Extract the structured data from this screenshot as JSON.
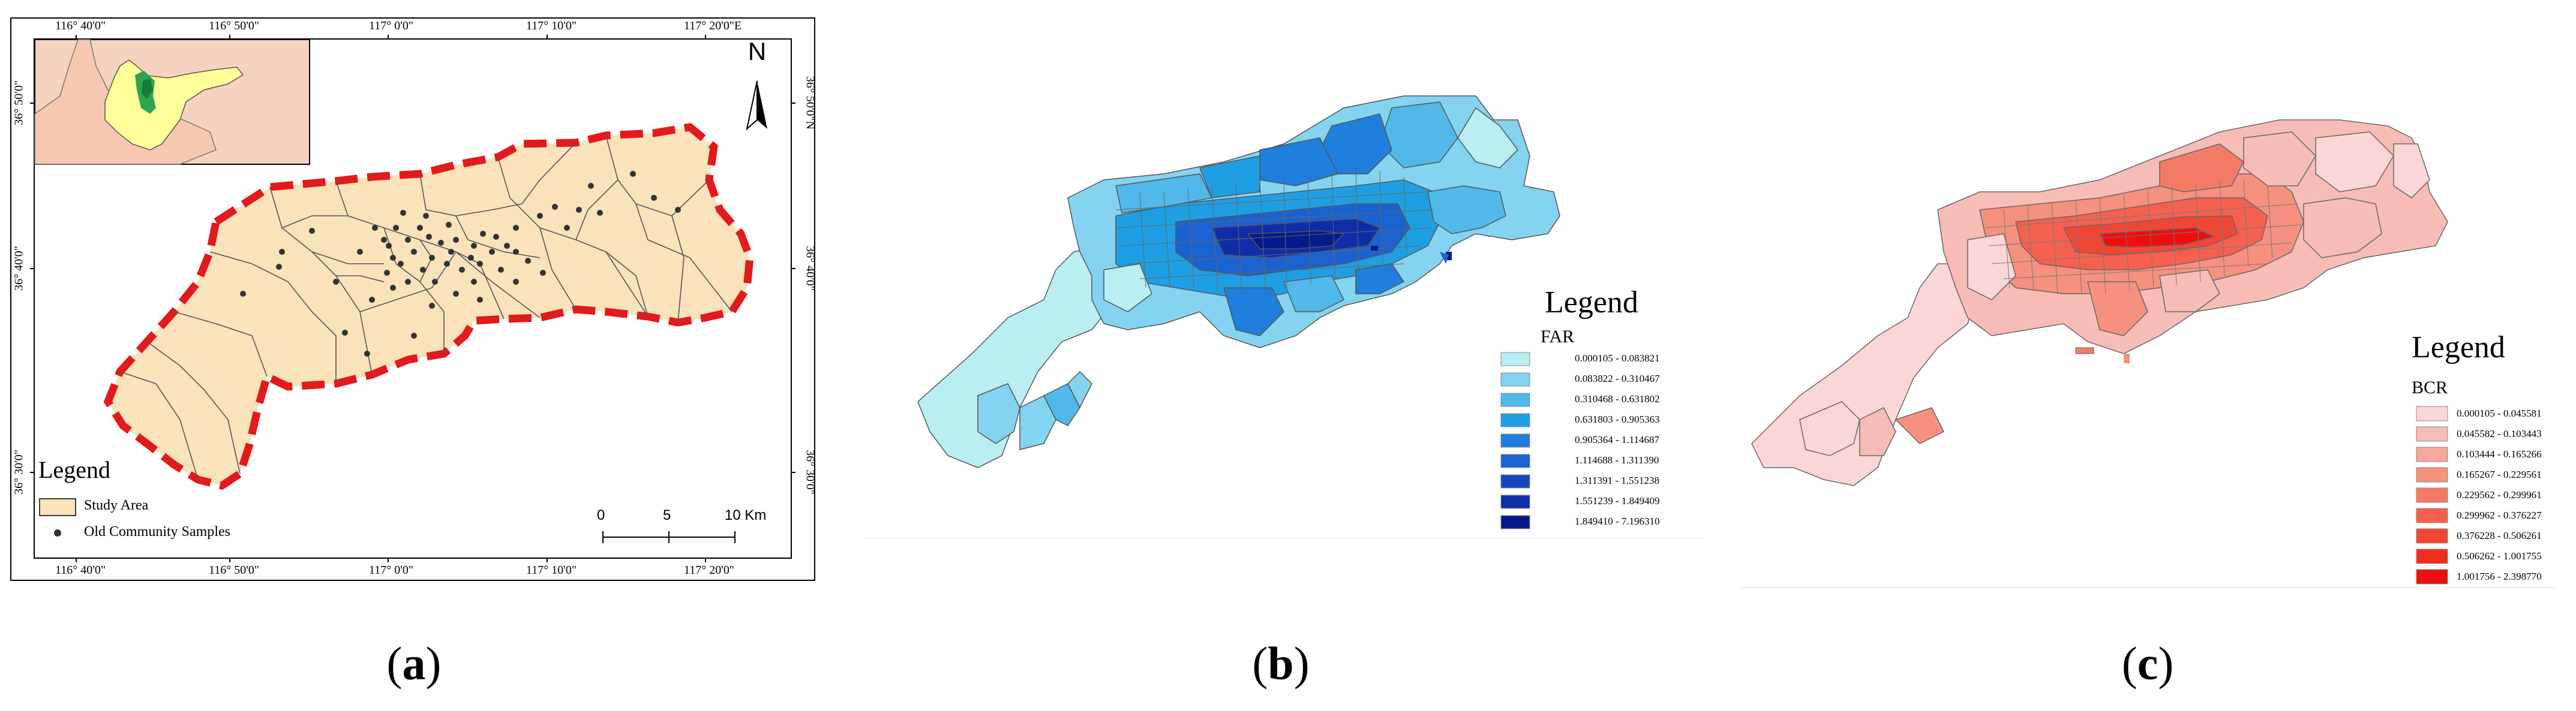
{
  "panel_a": {
    "caption": "a",
    "coords": {
      "top": [
        "116° 40'0\"",
        "116° 50'0\"",
        "117° 0'0\"",
        "117° 10'0\"",
        "117° 20'0\"E"
      ],
      "bottom": [
        "116° 40'0\"",
        "116° 50'0\"",
        "117° 0'0\"",
        "117° 10'0\"",
        "117° 20'0\""
      ],
      "left": [
        "36° 50'0\"",
        "36° 40'0\"",
        "36° 30'0\""
      ],
      "right": [
        "36° 50'0\"N",
        "36° 40'0\"",
        "36° 30'0\""
      ]
    },
    "north_label": "N",
    "legend_title": "Legend",
    "legend_items": [
      {
        "label": "Study Area",
        "color": "#fae3bb"
      },
      {
        "label": "Old Community Samples",
        "color": "#333333"
      }
    ],
    "scale": {
      "ticks": [
        "0",
        "5",
        "10"
      ],
      "unit": "Km"
    },
    "colors": {
      "study_area": "#fae3bb",
      "boundary": "#e31a1c",
      "province": "#ffff99",
      "neighbour": "#f6d3c0"
    }
  },
  "panel_b": {
    "caption": "b",
    "legend_title": "Legend",
    "field": "FAR",
    "classes": [
      {
        "range": "0.000105 - 0.083821",
        "color": "#b9eef2"
      },
      {
        "range": "0.083822 - 0.310467",
        "color": "#84d3f0"
      },
      {
        "range": "0.310468 - 0.631802",
        "color": "#50b9ea"
      },
      {
        "range": "0.631803 - 0.905363",
        "color": "#1f9fe3"
      },
      {
        "range": "0.905364 - 1.114687",
        "color": "#1e7fdc"
      },
      {
        "range": "1.114688 - 1.311390",
        "color": "#1a62cf"
      },
      {
        "range": "1.311391 - 1.551238",
        "color": "#1646bf"
      },
      {
        "range": "1.551239 - 1.849409",
        "color": "#102da8"
      },
      {
        "range": "1.849410 - 7.196310",
        "color": "#071a89"
      }
    ]
  },
  "panel_c": {
    "caption": "c",
    "legend_title": "Legend",
    "field": "BCR",
    "classes": [
      {
        "range": "0.000105 - 0.045581",
        "color": "#fbd6d6"
      },
      {
        "range": "0.045582 - 0.103443",
        "color": "#f8bcb6"
      },
      {
        "range": "0.103444 - 0.165266",
        "color": "#f7a79a"
      },
      {
        "range": "0.165267 - 0.229561",
        "color": "#f6917f"
      },
      {
        "range": "0.229562 - 0.299961",
        "color": "#f57a66"
      },
      {
        "range": "0.299962 - 0.376227",
        "color": "#f4604d"
      },
      {
        "range": "0.376228 - 0.506261",
        "color": "#f24635"
      },
      {
        "range": "0.506262 - 1.001755",
        "color": "#f02b1f"
      },
      {
        "range": "1.001756 - 2.398770",
        "color": "#ee0e0e"
      }
    ]
  }
}
